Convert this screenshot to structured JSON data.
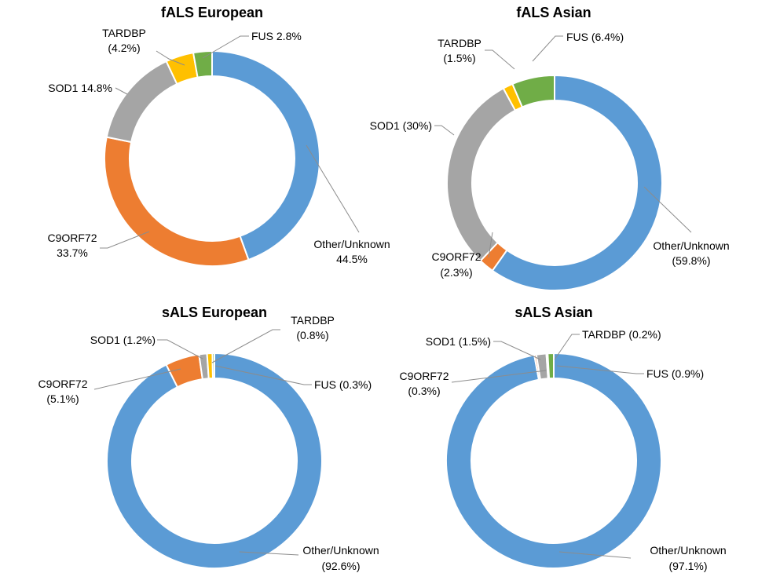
{
  "chart_data": [
    {
      "type": "pie",
      "variant": "donut",
      "title": "fALS European",
      "slices": [
        {
          "name": "Other/Unknown",
          "value": 44.5,
          "label": [
            "Other/Unknown",
            "44.5%"
          ],
          "color": "#5b9bd5"
        },
        {
          "name": "C9ORF72",
          "value": 33.7,
          "label": [
            "C9ORF72",
            "33.7%"
          ],
          "color": "#ed7d31"
        },
        {
          "name": "SOD1",
          "value": 14.8,
          "label": [
            "SOD1 14.8%"
          ],
          "color": "#a5a5a5"
        },
        {
          "name": "TARDBP",
          "value": 4.2,
          "label": [
            "TARDBP",
            "(4.2%)"
          ],
          "color": "#ffc000"
        },
        {
          "name": "FUS",
          "value": 2.8,
          "label": [
            "FUS 2.8%"
          ],
          "color": "#70ad47"
        }
      ]
    },
    {
      "type": "pie",
      "variant": "donut",
      "title": "fALS Asian",
      "slices": [
        {
          "name": "Other/Unknown",
          "value": 59.8,
          "label": [
            "Other/Unknown",
            "(59.8%)"
          ],
          "color": "#5b9bd5"
        },
        {
          "name": "C9ORF72",
          "value": 2.3,
          "label": [
            "C9ORF72",
            "(2.3%)"
          ],
          "color": "#ed7d31"
        },
        {
          "name": "SOD1",
          "value": 30,
          "label": [
            "SOD1 (30%)"
          ],
          "color": "#a5a5a5"
        },
        {
          "name": "TARDBP",
          "value": 1.5,
          "label": [
            "TARDBP",
            "(1.5%)"
          ],
          "color": "#ffc000"
        },
        {
          "name": "FUS",
          "value": 6.4,
          "label": [
            "FUS (6.4%)"
          ],
          "color": "#70ad47"
        }
      ]
    },
    {
      "type": "pie",
      "variant": "donut",
      "title": "sALS European",
      "slices": [
        {
          "name": "Other/Unknown",
          "value": 92.6,
          "label": [
            "Other/Unknown",
            "(92.6%)"
          ],
          "color": "#5b9bd5"
        },
        {
          "name": "C9ORF72",
          "value": 5.1,
          "label": [
            "C9ORF72",
            "(5.1%)"
          ],
          "color": "#ed7d31"
        },
        {
          "name": "SOD1",
          "value": 1.2,
          "label": [
            "SOD1 (1.2%)"
          ],
          "color": "#a5a5a5"
        },
        {
          "name": "TARDBP",
          "value": 0.8,
          "label": [
            "TARDBP",
            "(0.8%)"
          ],
          "color": "#ffc000"
        },
        {
          "name": "FUS",
          "value": 0.3,
          "label": [
            "FUS (0.3%)"
          ],
          "color": "#70ad47"
        }
      ]
    },
    {
      "type": "pie",
      "variant": "donut",
      "title": "sALS Asian",
      "slices": [
        {
          "name": "Other/Unknown",
          "value": 97.1,
          "label": [
            "Other/Unknown",
            "(97.1%)"
          ],
          "color": "#5b9bd5"
        },
        {
          "name": "C9ORF72",
          "value": 0.3,
          "label": [
            "C9ORF72",
            "(0.3%)"
          ],
          "color": "#ed7d31"
        },
        {
          "name": "SOD1",
          "value": 1.5,
          "label": [
            "SOD1 (1.5%)"
          ],
          "color": "#a5a5a5"
        },
        {
          "name": "TARDBP",
          "value": 0.2,
          "label": [
            "TARDBP (0.2%)"
          ],
          "color": "#264478"
        },
        {
          "name": "FUS",
          "value": 0.9,
          "label": [
            "FUS (0.9%)"
          ],
          "color": "#70ad47"
        }
      ]
    }
  ]
}
